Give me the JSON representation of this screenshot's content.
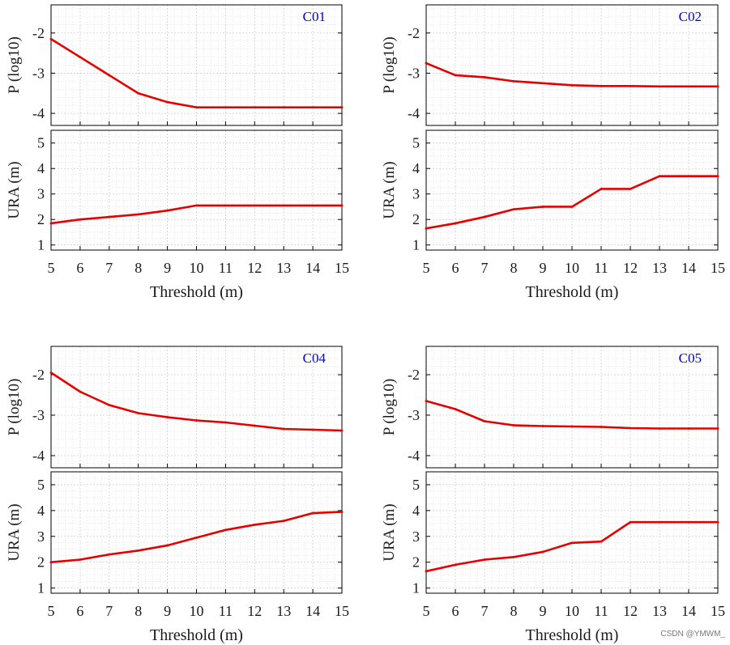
{
  "colors": {
    "series": "#e60000",
    "title": "#0000e6",
    "axis": "#000000",
    "grid": "#cfcfcf"
  },
  "watermark": "CSDN @YMWM_",
  "chart_data": [
    {
      "type": "line",
      "title": "C01",
      "xlabel": "Threshold (m)",
      "x": [
        5,
        6,
        7,
        8,
        9,
        10,
        11,
        12,
        13,
        14,
        15
      ],
      "xticks": [
        "5",
        "6",
        "7",
        "8",
        "9",
        "10",
        "11",
        "12",
        "13",
        "14",
        "15"
      ],
      "xlim": [
        5,
        15
      ],
      "top": {
        "ylabel": "P (log10)",
        "ylim": [
          -4.3,
          -1.3
        ],
        "yticks": [
          -4,
          -3,
          -2
        ],
        "ytick_labels": [
          "-4",
          "-3",
          "-2"
        ],
        "values": [
          -2.15,
          -2.6,
          -3.05,
          -3.5,
          -3.72,
          -3.85,
          -3.85,
          -3.85,
          -3.85,
          -3.85,
          -3.85
        ]
      },
      "bottom": {
        "ylabel": "URA (m)",
        "ylim": [
          0.8,
          5.5
        ],
        "yticks": [
          1,
          2,
          3,
          4,
          5
        ],
        "ytick_labels": [
          "1",
          "2",
          "3",
          "4",
          "5"
        ],
        "values": [
          1.85,
          2.0,
          2.1,
          2.2,
          2.35,
          2.55,
          2.55,
          2.55,
          2.55,
          2.55,
          2.55
        ]
      }
    },
    {
      "type": "line",
      "title": "C02",
      "xlabel": "Threshold (m)",
      "x": [
        5,
        6,
        7,
        8,
        9,
        10,
        11,
        12,
        13,
        14,
        15
      ],
      "xticks": [
        "5",
        "6",
        "7",
        "8",
        "9",
        "10",
        "11",
        "12",
        "13",
        "14",
        "15"
      ],
      "xlim": [
        5,
        15
      ],
      "top": {
        "ylabel": "P (log10)",
        "ylim": [
          -4.3,
          -1.3
        ],
        "yticks": [
          -4,
          -3,
          -2
        ],
        "ytick_labels": [
          "-4",
          "-3",
          "-2"
        ],
        "values": [
          -2.75,
          -3.05,
          -3.1,
          -3.2,
          -3.25,
          -3.3,
          -3.32,
          -3.32,
          -3.33,
          -3.33,
          -3.33
        ]
      },
      "bottom": {
        "ylabel": "URA (m)",
        "ylim": [
          0.8,
          5.5
        ],
        "yticks": [
          1,
          2,
          3,
          4,
          5
        ],
        "ytick_labels": [
          "1",
          "2",
          "3",
          "4",
          "5"
        ],
        "values": [
          1.65,
          1.85,
          2.1,
          2.4,
          2.5,
          2.5,
          3.2,
          3.2,
          3.7,
          3.7,
          3.7
        ]
      }
    },
    {
      "type": "line",
      "title": "C04",
      "xlabel": "Threshold (m)",
      "x": [
        5,
        6,
        7,
        8,
        9,
        10,
        11,
        12,
        13,
        14,
        15
      ],
      "xticks": [
        "5",
        "6",
        "7",
        "8",
        "9",
        "10",
        "11",
        "12",
        "13",
        "14",
        "15"
      ],
      "xlim": [
        5,
        15
      ],
      "top": {
        "ylabel": "P (log10)",
        "ylim": [
          -4.3,
          -1.3
        ],
        "yticks": [
          -4,
          -3,
          -2
        ],
        "ytick_labels": [
          "-4",
          "-3",
          "-2"
        ],
        "values": [
          -1.95,
          -2.42,
          -2.75,
          -2.95,
          -3.05,
          -3.13,
          -3.18,
          -3.26,
          -3.34,
          -3.36,
          -3.38
        ]
      },
      "bottom": {
        "ylabel": "URA (m)",
        "ylim": [
          0.8,
          5.5
        ],
        "yticks": [
          1,
          2,
          3,
          4,
          5
        ],
        "ytick_labels": [
          "1",
          "2",
          "3",
          "4",
          "5"
        ],
        "values": [
          2.0,
          2.1,
          2.3,
          2.45,
          2.65,
          2.95,
          3.25,
          3.45,
          3.6,
          3.9,
          3.95
        ]
      }
    },
    {
      "type": "line",
      "title": "C05",
      "xlabel": "Threshold (m)",
      "x": [
        5,
        6,
        7,
        8,
        9,
        10,
        11,
        12,
        13,
        14,
        15
      ],
      "xticks": [
        "5",
        "6",
        "7",
        "8",
        "9",
        "10",
        "11",
        "12",
        "13",
        "14",
        "15"
      ],
      "xlim": [
        5,
        15
      ],
      "top": {
        "ylabel": "P (log10)",
        "ylim": [
          -4.3,
          -1.3
        ],
        "yticks": [
          -4,
          -3,
          -2
        ],
        "ytick_labels": [
          "-4",
          "-3",
          "-2"
        ],
        "values": [
          -2.65,
          -2.85,
          -3.15,
          -3.25,
          -3.27,
          -3.28,
          -3.29,
          -3.32,
          -3.33,
          -3.33,
          -3.33
        ]
      },
      "bottom": {
        "ylabel": "URA (m)",
        "ylim": [
          0.8,
          5.5
        ],
        "yticks": [
          1,
          2,
          3,
          4,
          5
        ],
        "ytick_labels": [
          "1",
          "2",
          "3",
          "4",
          "5"
        ],
        "values": [
          1.65,
          1.9,
          2.1,
          2.2,
          2.4,
          2.75,
          2.8,
          3.55,
          3.55,
          3.55,
          3.55
        ]
      }
    }
  ]
}
